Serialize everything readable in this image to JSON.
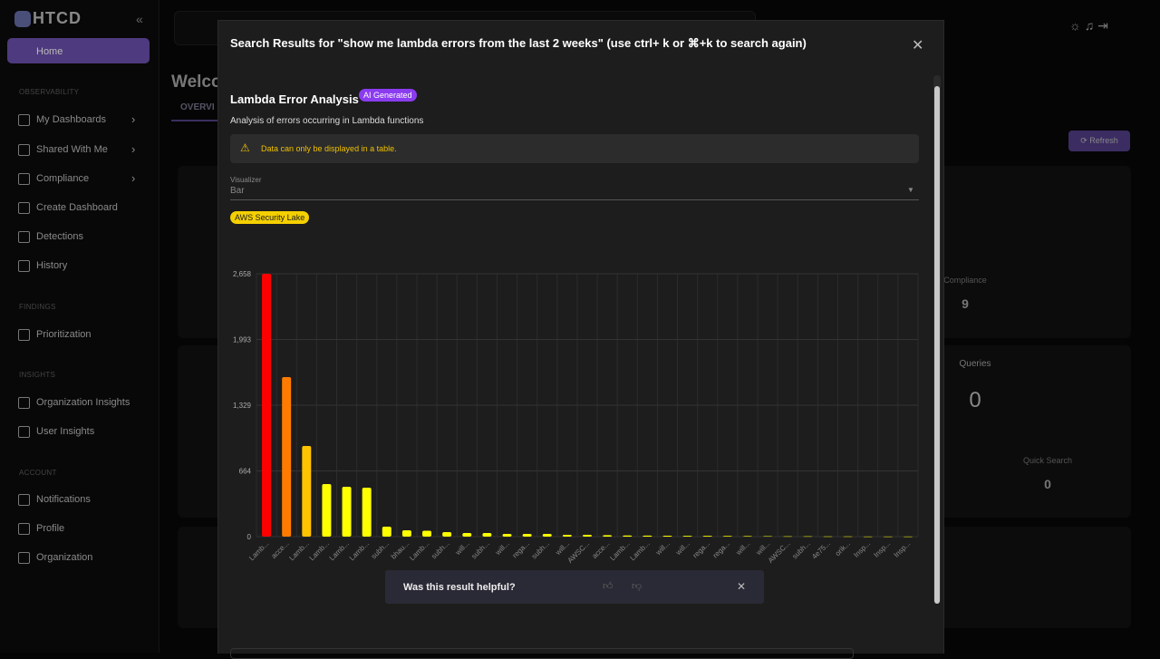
{
  "sidebar": {
    "logo": "HTCD",
    "home": "Home",
    "sections": [
      "OBSERVABILITY",
      "FINDINGS",
      "INSIGHTS",
      "ACCOUNT"
    ],
    "items": [
      "My Dashboards",
      "Shared With Me",
      "Compliance",
      "Create Dashboard",
      "Detections",
      "History",
      "Prioritization",
      "Organization Insights",
      "User Insights",
      "Notifications",
      "Profile",
      "Organization"
    ]
  },
  "background": {
    "heading": "Welco",
    "tab": "OVERVI",
    "refresh": "Refresh",
    "compliance_label": "Compliance",
    "compliance_value": "9",
    "queries_label": "Queries",
    "queries_value": "0",
    "quick_search_label": "Quick Search",
    "quick_search_value": "0"
  },
  "modal": {
    "title": "Search Results for \"show me lambda errors from the last 2 weeks\" (use ctrl+ k or ⌘+k to search again)",
    "heading": "Lambda Error Analysis",
    "badge": "AI Generated",
    "description": "Analysis of errors occurring in Lambda functions",
    "warning": "Data can only be displayed in a table.",
    "visualizer_label": "Visualizer",
    "visualizer_value": "Bar",
    "source": "AWS Security Lake",
    "feedback": "Was this result helpful?"
  },
  "chart_data": {
    "type": "bar",
    "categories": [
      "Lamb...",
      "acce...",
      "Lamb...",
      "Lamb...",
      "Lamb...",
      "Lamb...",
      "subh...",
      "bhau...",
      "Lamb...",
      "subh...",
      "will...",
      "subh...",
      "will...",
      "rega...",
      "subh...",
      "will...",
      "AWSC...",
      "acce...",
      "Lamb...",
      "Lamb...",
      "will...",
      "will...",
      "rega...",
      "rega...",
      "will...",
      "will...",
      "AWSC...",
      "subh...",
      "4e75...",
      "orik...",
      "Insp...",
      "Insp...",
      "Insp..."
    ],
    "values": [
      2658,
      1613,
      917,
      532,
      504,
      495,
      101,
      64,
      60,
      46,
      37,
      37,
      28,
      28,
      28,
      18,
      18,
      15,
      12,
      10,
      9,
      8,
      8,
      7,
      6,
      5,
      4,
      3,
      2,
      2,
      1,
      1,
      1
    ],
    "colors": [
      "#ff0000",
      "#ff7b00",
      "#ffc400",
      "#ffff00",
      "#ffff00",
      "#ffff00",
      "#ffff00",
      "#ffff00",
      "#ffff00",
      "#ffff00",
      "#ffff00",
      "#ffff00",
      "#ffff00",
      "#ffff00",
      "#ffff00",
      "#ffff00",
      "#ffff00",
      "#ffff00",
      "#ffff00",
      "#ffff00",
      "#ffff00",
      "#ffff00",
      "#ffff00",
      "#ffff00",
      "#ffff00",
      "#ffff00",
      "#ffff00",
      "#ffff00",
      "#ffff00",
      "#ffff00",
      "#ffff00",
      "#ffff00",
      "#ffff00"
    ],
    "ylim": [
      0,
      2658
    ],
    "yticks": [
      0,
      664,
      {
        "value": 1329,
        "label": "1,329"
      },
      {
        "value": 1993,
        "label": "1,993"
      },
      {
        "value": 2658,
        "label": "2,658"
      }
    ],
    "grid": true
  }
}
